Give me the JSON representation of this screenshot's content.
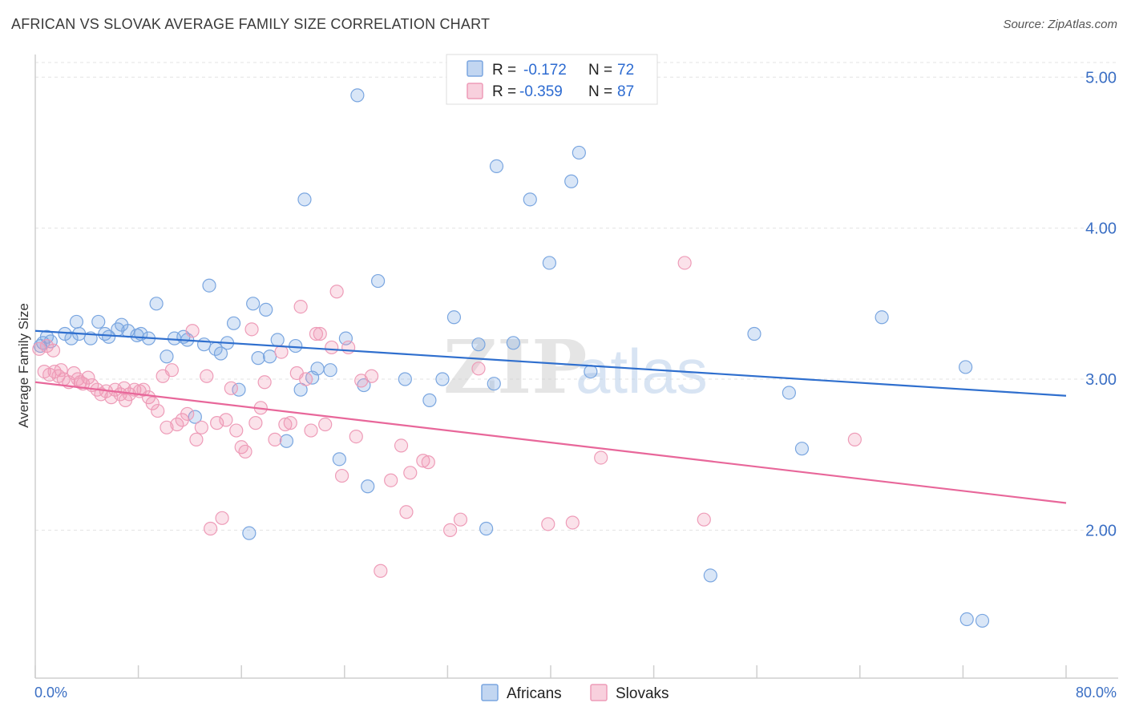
{
  "title": "AFRICAN VS SLOVAK AVERAGE FAMILY SIZE CORRELATION CHART",
  "source": "Source: ZipAtlas.com",
  "colors": {
    "africans_fill": "rgba(120,165,225,0.28)",
    "africans_stroke": "#7aa6e0",
    "africans_line": "#2f6fce",
    "slovaks_fill": "rgba(240,150,180,0.28)",
    "slovaks_stroke": "#ee9cb8",
    "slovaks_line": "#e8679a",
    "axis_text": "#3b6fc4",
    "grid": "#e3e3e3"
  },
  "legend": {
    "rows": [
      {
        "r_label": "R =",
        "r_value": "-0.172",
        "n_label": "N =",
        "n_value": "72"
      },
      {
        "r_label": "R =",
        "r_value": "-0.359",
        "n_label": "N =",
        "n_value": "87"
      }
    ]
  },
  "bottom_legend": [
    "Africans",
    "Slovaks"
  ],
  "watermark": {
    "zip": "ZIP",
    "atlas": "atlas"
  },
  "chart_data": {
    "type": "scatter",
    "title": "AFRICAN VS SLOVAK AVERAGE FAMILY SIZE CORRELATION CHART",
    "xlabel": "",
    "ylabel": "Average Family Size",
    "xlim": [
      0,
      80
    ],
    "ylim": [
      1.02,
      5.15
    ],
    "x_tick_labels": [
      "0.0%",
      "80.0%"
    ],
    "y_ticks": [
      2.0,
      3.0,
      4.0,
      5.0
    ],
    "y_tick_labels": [
      "2.00",
      "3.00",
      "4.00",
      "5.00"
    ],
    "grid": true,
    "series": [
      {
        "name": "Africans",
        "r": -0.172,
        "n": 72,
        "trend": {
          "x0": 0,
          "y0": 3.32,
          "x1": 80,
          "y1": 2.89
        },
        "points": [
          [
            0.4,
            3.22
          ],
          [
            0.6,
            3.24
          ],
          [
            0.9,
            3.28
          ],
          [
            1.2,
            3.25
          ],
          [
            2.3,
            3.3
          ],
          [
            2.8,
            3.27
          ],
          [
            3.2,
            3.38
          ],
          [
            3.4,
            3.3
          ],
          [
            4.3,
            3.27
          ],
          [
            4.9,
            3.38
          ],
          [
            5.4,
            3.3
          ],
          [
            5.7,
            3.28
          ],
          [
            6.4,
            3.33
          ],
          [
            6.7,
            3.36
          ],
          [
            7.2,
            3.32
          ],
          [
            7.9,
            3.29
          ],
          [
            8.2,
            3.3
          ],
          [
            8.8,
            3.27
          ],
          [
            9.4,
            3.5
          ],
          [
            10.2,
            3.15
          ],
          [
            10.8,
            3.27
          ],
          [
            11.5,
            3.28
          ],
          [
            11.8,
            3.26
          ],
          [
            12.4,
            2.75
          ],
          [
            13.1,
            3.23
          ],
          [
            13.5,
            3.62
          ],
          [
            14.0,
            3.2
          ],
          [
            14.4,
            3.17
          ],
          [
            14.9,
            3.24
          ],
          [
            15.4,
            3.37
          ],
          [
            15.8,
            2.93
          ],
          [
            16.6,
            1.98
          ],
          [
            16.9,
            3.5
          ],
          [
            17.3,
            3.14
          ],
          [
            17.9,
            3.46
          ],
          [
            18.2,
            3.15
          ],
          [
            18.8,
            3.26
          ],
          [
            19.5,
            2.59
          ],
          [
            20.2,
            3.22
          ],
          [
            20.6,
            2.93
          ],
          [
            20.9,
            4.19
          ],
          [
            21.5,
            3.01
          ],
          [
            21.9,
            3.07
          ],
          [
            22.9,
            3.06
          ],
          [
            23.6,
            2.47
          ],
          [
            24.1,
            3.27
          ],
          [
            25.0,
            4.88
          ],
          [
            25.5,
            2.96
          ],
          [
            25.8,
            2.29
          ],
          [
            26.6,
            3.65
          ],
          [
            28.7,
            3.0
          ],
          [
            30.6,
            2.86
          ],
          [
            31.6,
            3.0
          ],
          [
            32.5,
            3.41
          ],
          [
            34.4,
            3.23
          ],
          [
            35.0,
            2.01
          ],
          [
            35.6,
            2.97
          ],
          [
            35.8,
            4.41
          ],
          [
            37.1,
            3.24
          ],
          [
            38.4,
            4.19
          ],
          [
            39.9,
            3.77
          ],
          [
            41.6,
            4.31
          ],
          [
            42.2,
            4.5
          ],
          [
            43.1,
            3.05
          ],
          [
            52.4,
            1.7
          ],
          [
            55.8,
            3.3
          ],
          [
            58.5,
            2.91
          ],
          [
            59.5,
            2.54
          ],
          [
            65.7,
            3.41
          ],
          [
            72.2,
            3.08
          ],
          [
            72.3,
            1.41
          ],
          [
            73.5,
            1.4
          ]
        ]
      },
      {
        "name": "Slovaks",
        "r": -0.359,
        "n": 87,
        "trend": {
          "x0": 0,
          "y0": 2.98,
          "x1": 80,
          "y1": 2.18
        },
        "points": [
          [
            0.3,
            3.2
          ],
          [
            0.7,
            3.05
          ],
          [
            1.1,
            3.03
          ],
          [
            1.5,
            3.05
          ],
          [
            1.8,
            3.02
          ],
          [
            2.2,
            3.0
          ],
          [
            2.6,
            2.98
          ],
          [
            3.0,
            3.04
          ],
          [
            3.3,
            3.0
          ],
          [
            3.7,
            2.97
          ],
          [
            4.1,
            3.01
          ],
          [
            4.4,
            2.96
          ],
          [
            4.8,
            2.93
          ],
          [
            5.1,
            2.9
          ],
          [
            5.5,
            2.92
          ],
          [
            5.9,
            2.88
          ],
          [
            6.2,
            2.93
          ],
          [
            6.6,
            2.9
          ],
          [
            7.0,
            2.86
          ],
          [
            7.3,
            2.9
          ],
          [
            7.7,
            2.93
          ],
          [
            8.1,
            2.92
          ],
          [
            8.4,
            2.93
          ],
          [
            8.8,
            2.88
          ],
          [
            9.1,
            2.84
          ],
          [
            9.5,
            2.79
          ],
          [
            9.9,
            3.02
          ],
          [
            10.2,
            2.68
          ],
          [
            10.6,
            3.06
          ],
          [
            11.0,
            2.7
          ],
          [
            11.4,
            2.73
          ],
          [
            11.8,
            2.77
          ],
          [
            12.2,
            3.32
          ],
          [
            12.5,
            2.6
          ],
          [
            12.9,
            2.68
          ],
          [
            13.3,
            3.02
          ],
          [
            13.6,
            2.01
          ],
          [
            14.1,
            2.71
          ],
          [
            14.5,
            2.08
          ],
          [
            14.8,
            2.73
          ],
          [
            15.2,
            2.94
          ],
          [
            15.6,
            2.66
          ],
          [
            16.0,
            2.55
          ],
          [
            16.3,
            2.52
          ],
          [
            16.8,
            3.33
          ],
          [
            17.1,
            2.71
          ],
          [
            17.5,
            2.81
          ],
          [
            17.8,
            2.98
          ],
          [
            18.6,
            2.6
          ],
          [
            19.1,
            3.18
          ],
          [
            19.4,
            2.7
          ],
          [
            19.8,
            2.71
          ],
          [
            20.3,
            3.04
          ],
          [
            20.6,
            3.48
          ],
          [
            21.0,
            3.0
          ],
          [
            21.4,
            2.66
          ],
          [
            21.8,
            3.3
          ],
          [
            22.1,
            3.3
          ],
          [
            22.5,
            2.7
          ],
          [
            23.0,
            3.21
          ],
          [
            23.4,
            3.58
          ],
          [
            23.8,
            2.36
          ],
          [
            24.3,
            3.21
          ],
          [
            24.9,
            2.62
          ],
          [
            25.3,
            2.99
          ],
          [
            26.1,
            3.02
          ],
          [
            26.8,
            1.73
          ],
          [
            27.6,
            2.33
          ],
          [
            28.4,
            2.56
          ],
          [
            28.8,
            2.12
          ],
          [
            29.1,
            2.38
          ],
          [
            30.1,
            2.46
          ],
          [
            30.5,
            2.45
          ],
          [
            32.2,
            2.0
          ],
          [
            33.0,
            2.07
          ],
          [
            34.4,
            3.07
          ],
          [
            39.8,
            2.04
          ],
          [
            41.7,
            2.05
          ],
          [
            43.9,
            2.48
          ],
          [
            50.4,
            3.77
          ],
          [
            51.9,
            2.07
          ],
          [
            63.6,
            2.6
          ],
          [
            0.9,
            3.22
          ],
          [
            1.4,
            3.19
          ],
          [
            2.0,
            3.06
          ],
          [
            3.5,
            2.98
          ],
          [
            6.9,
            2.94
          ]
        ]
      }
    ]
  }
}
